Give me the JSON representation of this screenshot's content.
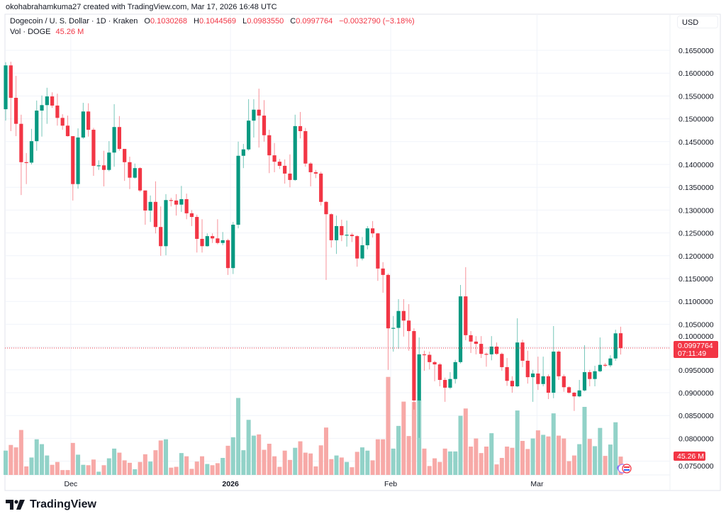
{
  "attribution": "okohabrahamkuma27 created with TradingView.com, Mar 17, 2026 16:48 UTC",
  "legend": {
    "symbol": "Dogecoin / U. S. Dollar · 1D · Kraken",
    "o_label": "O",
    "o": "0.1030268",
    "h_label": "H",
    "h": "0.1044569",
    "l_label": "L",
    "l": "0.0983550",
    "c_label": "C",
    "c": "0.0997764",
    "change": "−0.0032790 (−3.18%)",
    "vol_label": "Vol · DOGE",
    "vol": "45.26 M"
  },
  "currency": "USD",
  "price_label": {
    "value": "0.0997764",
    "countdown": "07:11:49"
  },
  "volume_label": "45.26 M",
  "brand": "TradingView",
  "colors": {
    "up": "#089981",
    "down": "#f23645",
    "vol_up": "#92d2c8",
    "vol_down": "#f7a9a7",
    "grid": "#f0f3fa"
  },
  "chart_data": {
    "type": "candlestick",
    "title": "Dogecoin / U. S. Dollar · 1D · Kraken",
    "ylabel": "USD",
    "ylim": [
      0.0735,
      0.169
    ],
    "y_ticks": [
      "0.1650000",
      "0.1600000",
      "0.1550000",
      "0.1500000",
      "0.1450000",
      "0.1400000",
      "0.1350000",
      "0.1300000",
      "0.1250000",
      "0.1200000",
      "0.1150000",
      "0.1100000",
      "0.1050000",
      "0.1000000",
      "0.0950000",
      "0.0900000",
      "0.0850000",
      "0.0800000",
      "0.0750000"
    ],
    "x_ticks": [
      {
        "label": "Dec",
        "index": 12.6,
        "bold": false
      },
      {
        "label": "2026",
        "index": 43.5,
        "bold": true
      },
      {
        "label": "Feb",
        "index": 74.5,
        "bold": false
      },
      {
        "label": "Mar",
        "index": 102.8,
        "bold": false
      }
    ],
    "volume_unit": "M DOGE",
    "candles_ohlcv": [
      [
        0.1521,
        0.1624,
        0.1496,
        0.1617,
        60
      ],
      [
        0.1617,
        0.1625,
        0.1473,
        0.1546,
        74
      ],
      [
        0.1546,
        0.1594,
        0.1462,
        0.1489,
        68
      ],
      [
        0.1489,
        0.1509,
        0.1333,
        0.1405,
        111
      ],
      [
        0.1405,
        0.1425,
        0.1357,
        0.1404,
        21
      ],
      [
        0.1404,
        0.1478,
        0.14,
        0.1451,
        43
      ],
      [
        0.1451,
        0.154,
        0.143,
        0.1518,
        88
      ],
      [
        0.1518,
        0.1551,
        0.1461,
        0.153,
        76
      ],
      [
        0.153,
        0.1568,
        0.1489,
        0.1549,
        48
      ],
      [
        0.1549,
        0.1558,
        0.1524,
        0.1529,
        25
      ],
      [
        0.1529,
        0.1555,
        0.1485,
        0.1502,
        32
      ],
      [
        0.1502,
        0.151,
        0.1476,
        0.1485,
        12
      ],
      [
        0.1485,
        0.1507,
        0.1461,
        0.1462,
        12
      ],
      [
        0.1462,
        0.1462,
        0.1321,
        0.1357,
        79
      ],
      [
        0.1357,
        0.1479,
        0.1347,
        0.1459,
        50
      ],
      [
        0.1459,
        0.1535,
        0.1456,
        0.1516,
        25
      ],
      [
        0.1516,
        0.1534,
        0.1461,
        0.1476,
        24
      ],
      [
        0.1476,
        0.148,
        0.1375,
        0.1397,
        38
      ],
      [
        0.1397,
        0.1409,
        0.1388,
        0.1398,
        8
      ],
      [
        0.1398,
        0.143,
        0.1352,
        0.1388,
        24
      ],
      [
        0.1388,
        0.1451,
        0.1385,
        0.1426,
        41
      ],
      [
        0.1426,
        0.1532,
        0.1395,
        0.1482,
        65
      ],
      [
        0.1482,
        0.1506,
        0.143,
        0.1434,
        55
      ],
      [
        0.1434,
        0.1434,
        0.1364,
        0.1405,
        36
      ],
      [
        0.1405,
        0.1417,
        0.1346,
        0.1371,
        30
      ],
      [
        0.1371,
        0.1402,
        0.1369,
        0.1392,
        14
      ],
      [
        0.1392,
        0.1394,
        0.134,
        0.1343,
        32
      ],
      [
        0.1343,
        0.1343,
        0.1268,
        0.1299,
        51
      ],
      [
        0.1299,
        0.1332,
        0.1274,
        0.1318,
        33
      ],
      [
        0.1318,
        0.1363,
        0.1249,
        0.1263,
        61
      ],
      [
        0.1263,
        0.1308,
        0.12,
        0.1221,
        85
      ],
      [
        0.1221,
        0.1335,
        0.1201,
        0.1322,
        88
      ],
      [
        0.1322,
        0.1327,
        0.1308,
        0.1321,
        18
      ],
      [
        0.1321,
        0.1335,
        0.1288,
        0.1312,
        20
      ],
      [
        0.1312,
        0.1353,
        0.1296,
        0.1324,
        54
      ],
      [
        0.1324,
        0.1336,
        0.128,
        0.1293,
        46
      ],
      [
        0.1293,
        0.13,
        0.1265,
        0.1285,
        15
      ],
      [
        0.1285,
        0.129,
        0.1207,
        0.1237,
        33
      ],
      [
        0.1237,
        0.128,
        0.1207,
        0.1221,
        46
      ],
      [
        0.1221,
        0.1249,
        0.122,
        0.1243,
        27
      ],
      [
        0.1243,
        0.1249,
        0.1228,
        0.1238,
        24
      ],
      [
        0.1238,
        0.128,
        0.1225,
        0.1228,
        29
      ],
      [
        0.1228,
        0.1252,
        0.1223,
        0.1234,
        42
      ],
      [
        0.1234,
        0.1237,
        0.1158,
        0.1173,
        72
      ],
      [
        0.1173,
        0.1274,
        0.116,
        0.1268,
        93
      ],
      [
        0.1268,
        0.145,
        0.126,
        0.1419,
        190
      ],
      [
        0.1419,
        0.1445,
        0.1392,
        0.1433,
        61
      ],
      [
        0.1433,
        0.1543,
        0.143,
        0.1496,
        136
      ],
      [
        0.1496,
        0.1543,
        0.1459,
        0.152,
        97
      ],
      [
        0.152,
        0.1566,
        0.1437,
        0.1507,
        100
      ],
      [
        0.1507,
        0.1541,
        0.145,
        0.1464,
        62
      ],
      [
        0.1464,
        0.1476,
        0.1381,
        0.142,
        77
      ],
      [
        0.142,
        0.1447,
        0.1383,
        0.1406,
        46
      ],
      [
        0.1406,
        0.1412,
        0.139,
        0.1397,
        20
      ],
      [
        0.1397,
        0.1411,
        0.1358,
        0.138,
        60
      ],
      [
        0.138,
        0.1422,
        0.135,
        0.1366,
        37
      ],
      [
        0.1366,
        0.1509,
        0.1364,
        0.1484,
        67
      ],
      [
        0.1484,
        0.1515,
        0.1457,
        0.1473,
        83
      ],
      [
        0.1473,
        0.148,
        0.1395,
        0.1402,
        55
      ],
      [
        0.1402,
        0.1405,
        0.1352,
        0.1383,
        53
      ],
      [
        0.1383,
        0.1388,
        0.137,
        0.138,
        21
      ],
      [
        0.138,
        0.1384,
        0.131,
        0.1318,
        73
      ],
      [
        0.1318,
        0.132,
        0.1147,
        0.1291,
        117
      ],
      [
        0.1291,
        0.1293,
        0.1218,
        0.1234,
        39
      ],
      [
        0.1234,
        0.1288,
        0.1204,
        0.1265,
        48
      ],
      [
        0.1265,
        0.1279,
        0.1232,
        0.1245,
        43
      ],
      [
        0.1245,
        0.1277,
        0.122,
        0.1246,
        32
      ],
      [
        0.1246,
        0.125,
        0.123,
        0.1243,
        19
      ],
      [
        0.1243,
        0.1245,
        0.1176,
        0.1194,
        57
      ],
      [
        0.1194,
        0.1241,
        0.119,
        0.1223,
        68
      ],
      [
        0.1223,
        0.1265,
        0.1214,
        0.126,
        60
      ],
      [
        0.126,
        0.1276,
        0.124,
        0.1249,
        36
      ],
      [
        0.1249,
        0.125,
        0.1145,
        0.1172,
        88
      ],
      [
        0.1172,
        0.1186,
        0.1119,
        0.1158,
        88
      ],
      [
        0.1158,
        0.1161,
        0.095,
        0.1041,
        242
      ],
      [
        0.1041,
        0.1068,
        0.099,
        0.1042,
        65
      ],
      [
        0.1042,
        0.1105,
        0.0996,
        0.1079,
        121
      ],
      [
        0.1079,
        0.1105,
        0.1023,
        0.1058,
        181
      ],
      [
        0.1058,
        0.1094,
        0.0992,
        0.1035,
        96
      ],
      [
        0.1035,
        0.1041,
        0.0863,
        0.0883,
        180
      ],
      [
        0.0883,
        0.1021,
        0.0801,
        0.0984,
        185
      ],
      [
        0.0984,
        0.0992,
        0.0948,
        0.0983,
        65
      ],
      [
        0.0983,
        0.099,
        0.0951,
        0.0967,
        22
      ],
      [
        0.0967,
        0.097,
        0.0925,
        0.0962,
        41
      ],
      [
        0.0962,
        0.0965,
        0.0914,
        0.0928,
        32
      ],
      [
        0.0928,
        0.0933,
        0.088,
        0.0911,
        65
      ],
      [
        0.0911,
        0.0945,
        0.0908,
        0.093,
        58
      ],
      [
        0.093,
        0.0972,
        0.092,
        0.0967,
        58
      ],
      [
        0.0967,
        0.1136,
        0.0964,
        0.1111,
        146
      ],
      [
        0.1111,
        0.1175,
        0.1015,
        0.1026,
        164
      ],
      [
        0.1026,
        0.1035,
        0.0987,
        0.1012,
        70
      ],
      [
        0.1012,
        0.1024,
        0.0984,
        0.1007,
        90
      ],
      [
        0.1007,
        0.1024,
        0.0976,
        0.0985,
        54
      ],
      [
        0.0985,
        0.0988,
        0.0957,
        0.0984,
        70
      ],
      [
        0.0984,
        0.1024,
        0.0971,
        0.1001,
        103
      ],
      [
        0.1001,
        0.101,
        0.0983,
        0.0985,
        26
      ],
      [
        0.0985,
        0.0988,
        0.0948,
        0.0956,
        42
      ],
      [
        0.0956,
        0.0976,
        0.0915,
        0.0926,
        70
      ],
      [
        0.0926,
        0.0936,
        0.09,
        0.0914,
        67
      ],
      [
        0.0914,
        0.1063,
        0.0912,
        0.101,
        159
      ],
      [
        0.101,
        0.1016,
        0.0956,
        0.097,
        84
      ],
      [
        0.097,
        0.0992,
        0.092,
        0.0934,
        64
      ],
      [
        0.0934,
        0.095,
        0.088,
        0.0942,
        90
      ],
      [
        0.0942,
        0.0979,
        0.0906,
        0.0919,
        110
      ],
      [
        0.0919,
        0.0979,
        0.0914,
        0.0936,
        99
      ],
      [
        0.0936,
        0.094,
        0.0886,
        0.09,
        95
      ],
      [
        0.09,
        0.1046,
        0.0888,
        0.099,
        152
      ],
      [
        0.099,
        0.0993,
        0.0928,
        0.0936,
        97
      ],
      [
        0.0936,
        0.094,
        0.0902,
        0.0912,
        90
      ],
      [
        0.0912,
        0.0914,
        0.0898,
        0.09,
        34
      ],
      [
        0.09,
        0.0902,
        0.086,
        0.0892,
        48
      ],
      [
        0.0892,
        0.0928,
        0.089,
        0.0905,
        76
      ],
      [
        0.0905,
        0.1004,
        0.0903,
        0.0945,
        168
      ],
      [
        0.0945,
        0.095,
        0.0914,
        0.093,
        89
      ],
      [
        0.093,
        0.0959,
        0.0914,
        0.0947,
        71
      ],
      [
        0.0947,
        0.1021,
        0.0945,
        0.0961,
        116
      ],
      [
        0.0961,
        0.0965,
        0.0956,
        0.096,
        47
      ],
      [
        0.096,
        0.0982,
        0.0956,
        0.0975,
        75
      ],
      [
        0.0975,
        0.1038,
        0.097,
        0.103,
        130
      ],
      [
        0.1030268,
        0.1044569,
        0.098355,
        0.0997764,
        45.26
      ]
    ],
    "last_close": 0.0997764
  }
}
